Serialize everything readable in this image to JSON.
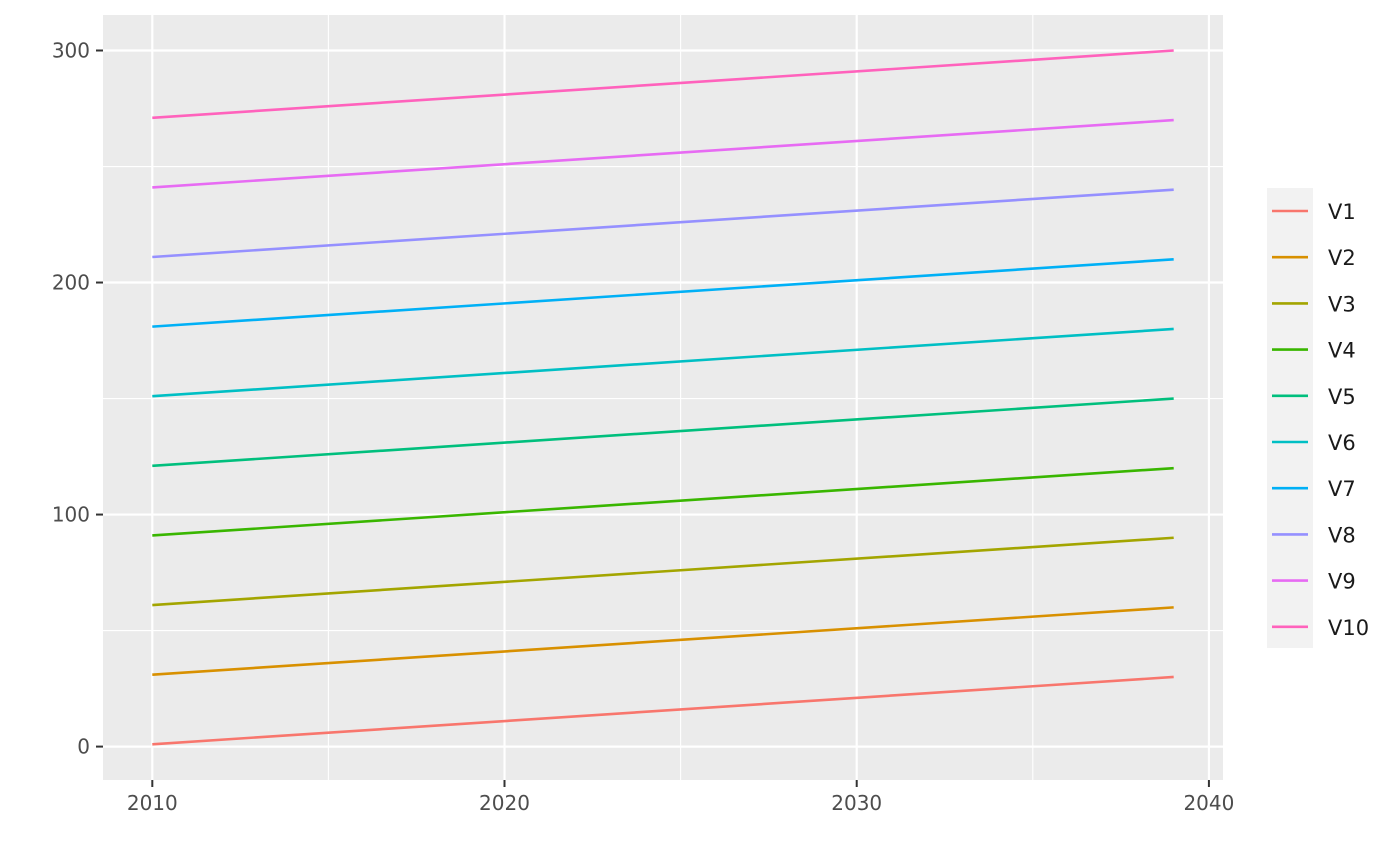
{
  "chart_data": {
    "type": "line",
    "title": "",
    "xlabel": "",
    "ylabel": "",
    "xlim": [
      2008.6,
      2040.4
    ],
    "ylim": [
      -14.4,
      315.3
    ],
    "x_ticks": [
      2010,
      2020,
      2030,
      2040
    ],
    "y_ticks": [
      0,
      100,
      200,
      300
    ],
    "grid": true,
    "legend_position": "right",
    "x_start": 2010,
    "x_end": 2039,
    "series": [
      {
        "name": "V1",
        "color": "#F8766D",
        "start": 1,
        "end": 30
      },
      {
        "name": "V2",
        "color": "#D89000",
        "start": 31,
        "end": 60
      },
      {
        "name": "V3",
        "color": "#A3A500",
        "start": 61,
        "end": 90
      },
      {
        "name": "V4",
        "color": "#39B600",
        "start": 91,
        "end": 120
      },
      {
        "name": "V5",
        "color": "#00BF7D",
        "start": 121,
        "end": 150
      },
      {
        "name": "V6",
        "color": "#00BFC4",
        "start": 151,
        "end": 180
      },
      {
        "name": "V7",
        "color": "#00B0F6",
        "start": 181,
        "end": 210
      },
      {
        "name": "V8",
        "color": "#9590FF",
        "start": 211,
        "end": 240
      },
      {
        "name": "V9",
        "color": "#E76BF3",
        "start": 241,
        "end": 270
      },
      {
        "name": "V10",
        "color": "#FF62BC",
        "start": 271,
        "end": 300
      }
    ]
  }
}
